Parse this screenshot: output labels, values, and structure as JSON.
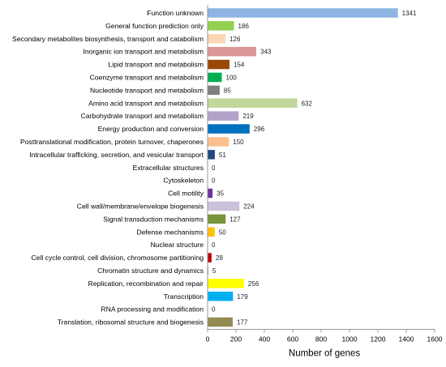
{
  "chart_data": {
    "type": "bar",
    "orientation": "horizontal",
    "xlabel": "Number of genes",
    "xlim": [
      0,
      1600
    ],
    "xticks": [
      0,
      200,
      400,
      600,
      800,
      1000,
      1200,
      1400,
      1600
    ],
    "grid": false,
    "legend": "none",
    "categories": [
      "Function unknown",
      "General function prediction only",
      "Secondary metabolites biosynthesis, transport and catabolism",
      "Inorganic ion transport and metabolism",
      "Lipid transport and metabolism",
      "Coenzyme transport and metabolism",
      "Nucleotide transport and metabolism",
      "Amino acid transport and metabolism",
      "Carbohydrate transport and metabolism",
      "Energy production and conversion",
      "Posttranslational modification, protein turnover, chaperones",
      "Intracellular trafficking, secretion, and vesicular transport",
      "Extracellular structures",
      "Cytoskeleton",
      "Cell motility",
      "Cell wall/membrane/envelope biogenesis",
      "Signal transduction mechanisms",
      "Defense mechanisms",
      "Nuclear structure",
      "Cell cycle control, cell division, chromosome partitioning",
      "Chromatin structure and dynamics",
      "Replication, recombination and repair",
      "Transcription",
      "RNA processing and modification",
      "Translation, ribosomal structure and biogenesis"
    ],
    "values": [
      1341,
      186,
      126,
      343,
      154,
      100,
      85,
      632,
      219,
      296,
      150,
      51,
      0,
      0,
      35,
      224,
      127,
      50,
      0,
      28,
      5,
      256,
      179,
      0,
      177
    ],
    "colors": [
      "#8DB4E2",
      "#92D050",
      "#FCD5B5",
      "#D99694",
      "#984807",
      "#00B050",
      "#7F7F7F",
      "#C3D69B",
      "#B3A2C7",
      "#0070C0",
      "#FAC090",
      "#1F497D",
      "#FFFFFF",
      "#FFFFFF",
      "#7030A0",
      "#CCC1DA",
      "#77933C",
      "#FFC000",
      "#FFFFFF",
      "#C00000",
      "#558ED5",
      "#FFFF00",
      "#00B0F0",
      "#FFFFFF",
      "#948A54"
    ]
  }
}
